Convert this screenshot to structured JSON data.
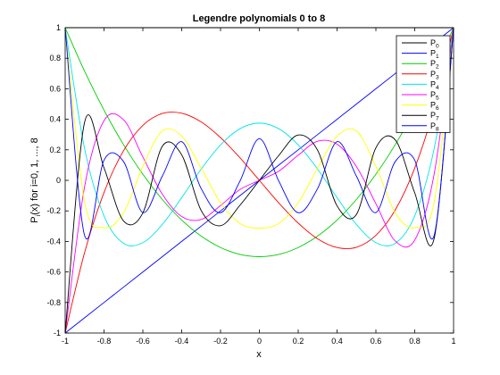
{
  "chart_data": {
    "type": "line",
    "title": "Legendre polynomials 0 to 8",
    "xlabel": "x",
    "ylabel": "P",
    "ylabel_sub": "i",
    "ylabel_suffix": "(x) for i=0, 1, ..., 8",
    "xlim": [
      -1,
      1
    ],
    "ylim": [
      -1,
      1
    ],
    "xticks": [
      -1,
      -0.8,
      -0.6,
      -0.4,
      -0.2,
      0,
      0.2,
      0.4,
      0.6,
      0.8,
      1
    ],
    "xtick_labels": [
      "-1",
      "-0.8",
      "-0.6",
      "-0.4",
      "-0.2",
      "0",
      "0.2",
      "0.4",
      "0.6",
      "0.8",
      "1"
    ],
    "yticks": [
      -1,
      -0.8,
      -0.6,
      -0.4,
      -0.2,
      0,
      0.2,
      0.4,
      0.6,
      0.8,
      1
    ],
    "ytick_labels": [
      "-1",
      "-0.8",
      "-0.6",
      "-0.4",
      "-0.2",
      "0",
      "0.2",
      "0.4",
      "0.6",
      "0.8",
      "1"
    ],
    "grid": false,
    "legend_position": "top-right",
    "x": [
      -1,
      -0.9,
      -0.8,
      -0.7,
      -0.6,
      -0.5,
      -0.4,
      -0.3,
      -0.2,
      -0.1,
      0,
      0.1,
      0.2,
      0.3,
      0.4,
      0.5,
      0.6,
      0.7,
      0.8,
      0.9,
      1
    ],
    "series": [
      {
        "name": "P",
        "sub": "0",
        "color": "#000000",
        "values": [
          1,
          1,
          1,
          1,
          1,
          1,
          1,
          1,
          1,
          1,
          1,
          1,
          1,
          1,
          1,
          1,
          1,
          1,
          1,
          1,
          1
        ]
      },
      {
        "name": "P",
        "sub": "1",
        "color": "#0000ff",
        "values": [
          -1,
          -0.9,
          -0.8,
          -0.7,
          -0.6,
          -0.5,
          -0.4,
          -0.3,
          -0.2,
          -0.1,
          0,
          0.1,
          0.2,
          0.3,
          0.4,
          0.5,
          0.6,
          0.7,
          0.8,
          0.9,
          1
        ]
      },
      {
        "name": "P",
        "sub": "2",
        "color": "#00cc00",
        "values": [
          1,
          0.715,
          0.46,
          0.235,
          0.04,
          -0.125,
          -0.26,
          -0.365,
          -0.44,
          -0.485,
          -0.5,
          -0.485,
          -0.44,
          -0.365,
          -0.26,
          -0.125,
          0.04,
          0.235,
          0.46,
          0.715,
          1
        ]
      },
      {
        "name": "P",
        "sub": "3",
        "color": "#ff0000",
        "values": [
          -1,
          -0.473,
          -0.08,
          0.193,
          0.36,
          0.438,
          0.44,
          0.383,
          0.28,
          0.148,
          0,
          -0.148,
          -0.28,
          -0.383,
          -0.44,
          -0.438,
          -0.36,
          -0.193,
          0.08,
          0.473,
          1
        ]
      },
      {
        "name": "P",
        "sub": "4",
        "color": "#00e5e5",
        "values": [
          1,
          0.208,
          -0.233,
          -0.412,
          -0.408,
          -0.289,
          -0.113,
          0.073,
          0.232,
          0.338,
          0.375,
          0.338,
          0.232,
          0.073,
          -0.113,
          -0.289,
          -0.408,
          -0.412,
          -0.233,
          0.208,
          1
        ]
      },
      {
        "name": "P",
        "sub": "5",
        "color": "#ff00ff",
        "values": [
          -1,
          -0.041,
          0.391,
          0.398,
          0.153,
          -0.09,
          -0.237,
          -0.256,
          -0.165,
          -0.06,
          0,
          0.06,
          0.165,
          0.256,
          0.237,
          0.09,
          -0.153,
          -0.398,
          -0.391,
          0.041,
          1
        ]
      },
      {
        "name": "P",
        "sub": "6",
        "color": "#ffff00",
        "values": [
          1,
          -0.143,
          -0.31,
          -0.214,
          0.092,
          0.323,
          0.29,
          0.08,
          -0.146,
          -0.282,
          -0.313,
          -0.282,
          -0.146,
          0.08,
          0.29,
          0.323,
          0.092,
          -0.214,
          -0.31,
          -0.143,
          1
        ]
      },
      {
        "name": "P",
        "sub": "7",
        "color": "#000000",
        "values": [
          -1,
          0.381,
          0.082,
          -0.265,
          -0.213,
          0.223,
          0.167,
          -0.197,
          -0.297,
          -0.163,
          0,
          0.163,
          0.297,
          0.197,
          -0.167,
          -0.223,
          0.213,
          0.265,
          -0.082,
          -0.381,
          1
        ]
      },
      {
        "name": "P",
        "sub": "8",
        "color": "#0000ff",
        "values": [
          1,
          -0.361,
          0.132,
          0.124,
          -0.211,
          0.027,
          0.253,
          -0.053,
          -0.212,
          -0.005,
          0.273,
          -0.005,
          -0.212,
          -0.053,
          0.253,
          0.027,
          -0.211,
          0.124,
          0.132,
          -0.361,
          1
        ]
      }
    ]
  }
}
